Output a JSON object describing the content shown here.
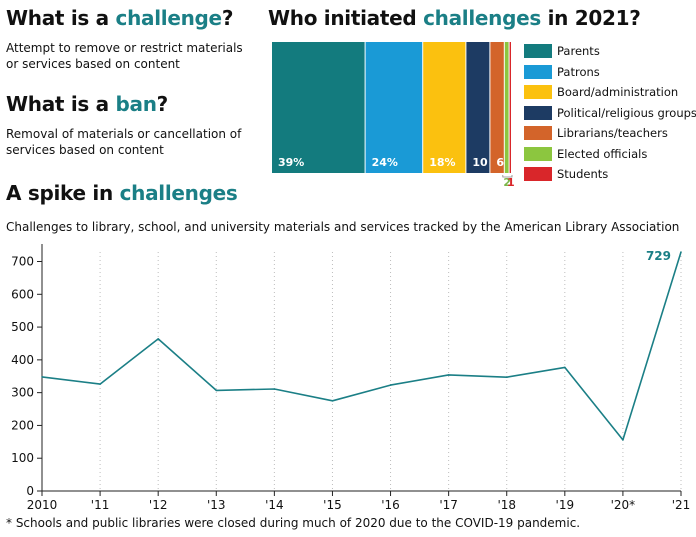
{
  "colors": {
    "accent": "#1b7f86",
    "line": "#1b7f86",
    "axis": "#222222",
    "grid": "#bdbdbd"
  },
  "header": {
    "challenge": {
      "pre": "What is a ",
      "em": "challenge",
      "post": "?",
      "desc": "Attempt to remove or restrict materials or services based on content"
    },
    "ban": {
      "pre": "What is a ",
      "em": "ban",
      "post": "?",
      "desc": "Removal of materials or cancellation of services based on content"
    },
    "initiators": {
      "pre": "Who initiated ",
      "em": "challenges",
      "post": " in 2021?"
    },
    "spike": {
      "pre": "A spike in ",
      "em": "challenges"
    },
    "subtitle": "Challenges to library, school, and university materials and services tracked by the American Library Association",
    "footnote": "* Schools and public libraries were closed during much of 2020 due to the COVID-19 pandemic."
  },
  "chart_data": [
    {
      "type": "bar",
      "orientation": "stacked-100",
      "title": "Who initiated challenges in 2021?",
      "unit": "%",
      "categories": [
        "Parents",
        "Patrons",
        "Board/administration",
        "Political/religious groups",
        "Librarians/teachers",
        "Elected officials",
        "Students"
      ],
      "values": [
        39,
        24,
        18,
        10,
        6,
        2,
        1
      ],
      "labels": [
        "39%",
        "24%",
        "18%",
        "10",
        "6",
        "2",
        "1"
      ],
      "colors": [
        "#137b7e",
        "#1a9ad6",
        "#fbc10f",
        "#1d3b63",
        "#d3642a",
        "#8cc63f",
        "#d9262a"
      ],
      "label_colors": [
        "#ffffff",
        "#ffffff",
        "#ffffff",
        "#ffffff",
        "#ffffff",
        "#7ab648",
        "#d9262a"
      ],
      "legend": "right"
    },
    {
      "type": "line",
      "title": "A spike in challenges",
      "x": [
        "2010",
        "'11",
        "'12",
        "'13",
        "'14",
        "'15",
        "'16",
        "'17",
        "'18",
        "'19",
        "'20*",
        "'21"
      ],
      "series": [
        {
          "values": [
            348,
            326,
            464,
            307,
            311,
            275,
            323,
            354,
            347,
            377,
            156,
            729
          ]
        }
      ],
      "annotation": "729",
      "ylim": [
        0,
        729
      ],
      "yticks": [
        0,
        100,
        200,
        300,
        400,
        500,
        600,
        700
      ],
      "grid": "vertical dotted"
    }
  ]
}
